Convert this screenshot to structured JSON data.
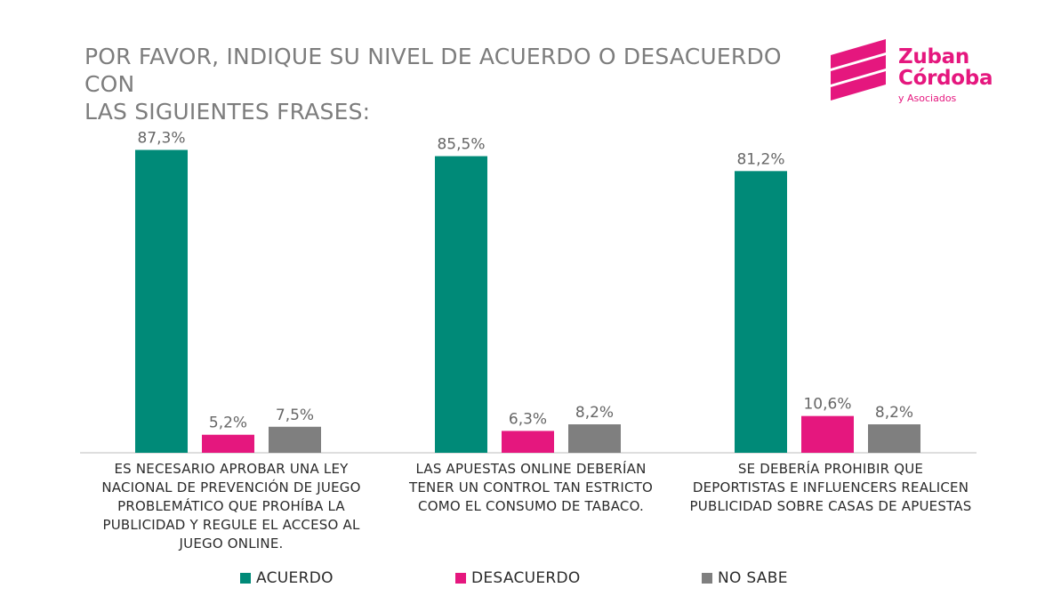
{
  "title_line1": "POR FAVOR, INDIQUE SU NIVEL DE ACUERDO O DESACUERDO CON",
  "title_line2": "LAS SIGUIENTES FRASES:",
  "logo": {
    "line1": "Zuban",
    "line2": "Córdoba",
    "line3": "y Asociados"
  },
  "colors": {
    "acuerdo": "#008a78",
    "desacuerdo": "#e5177e",
    "no_sabe": "#7f7f7f",
    "text": "#2b2b2b",
    "title": "#7d7d7d"
  },
  "chart_data": {
    "type": "bar",
    "title": "POR FAVOR, INDIQUE SU NIVEL DE ACUERDO O DESACUERDO CON LAS SIGUIENTES FRASES:",
    "categories": [
      "ES NECESARIO APROBAR UNA LEY NACIONAL DE PREVENCIÓN DE JUEGO PROBLEMÁTICO QUE PROHÍBA LA PUBLICIDAD Y REGULE EL ACCESO AL JUEGO ONLINE.",
      "LAS APUESTAS ONLINE DEBERÍAN TENER UN CONTROL TAN ESTRICTO COMO EL CONSUMO DE TABACO.",
      "SE DEBERÍA PROHIBIR QUE DEPORTISTAS E INFLUENCERS REALICEN PUBLICIDAD SOBRE CASAS DE APUESTAS"
    ],
    "category_label_lines": [
      [
        "ES NECESARIO APROBAR UNA LEY",
        "NACIONAL DE PREVENCIÓN DE JUEGO",
        "PROBLEMÁTICO QUE PROHÍBA LA",
        "PUBLICIDAD Y REGULE EL ACCESO AL",
        "JUEGO ONLINE."
      ],
      [
        "LAS APUESTAS ONLINE DEBERÍAN",
        "TENER UN CONTROL TAN ESTRICTO",
        "COMO EL CONSUMO DE TABACO."
      ],
      [
        "SE DEBERÍA PROHIBIR QUE",
        "DEPORTISTAS E INFLUENCERS REALICEN",
        "PUBLICIDAD SOBRE CASAS DE APUESTAS"
      ]
    ],
    "series": [
      {
        "name": "ACUERDO",
        "color": "#008a78",
        "values": [
          87.3,
          85.5,
          81.2
        ],
        "labels": [
          "87,3%",
          "85,5%",
          "81,2%"
        ]
      },
      {
        "name": "DESACUERDO",
        "color": "#e5177e",
        "values": [
          5.2,
          6.3,
          10.6
        ],
        "labels": [
          "5,2%",
          "6,3%",
          "10,6%"
        ]
      },
      {
        "name": "NO SABE",
        "color": "#7f7f7f",
        "values": [
          7.5,
          8.2,
          8.2
        ],
        "labels": [
          "7,5%",
          "8,2%",
          "8,2%"
        ]
      }
    ],
    "ylim": [
      0,
      100
    ],
    "xlabel": "",
    "ylabel": "",
    "grid": false,
    "legend_position": "bottom"
  }
}
